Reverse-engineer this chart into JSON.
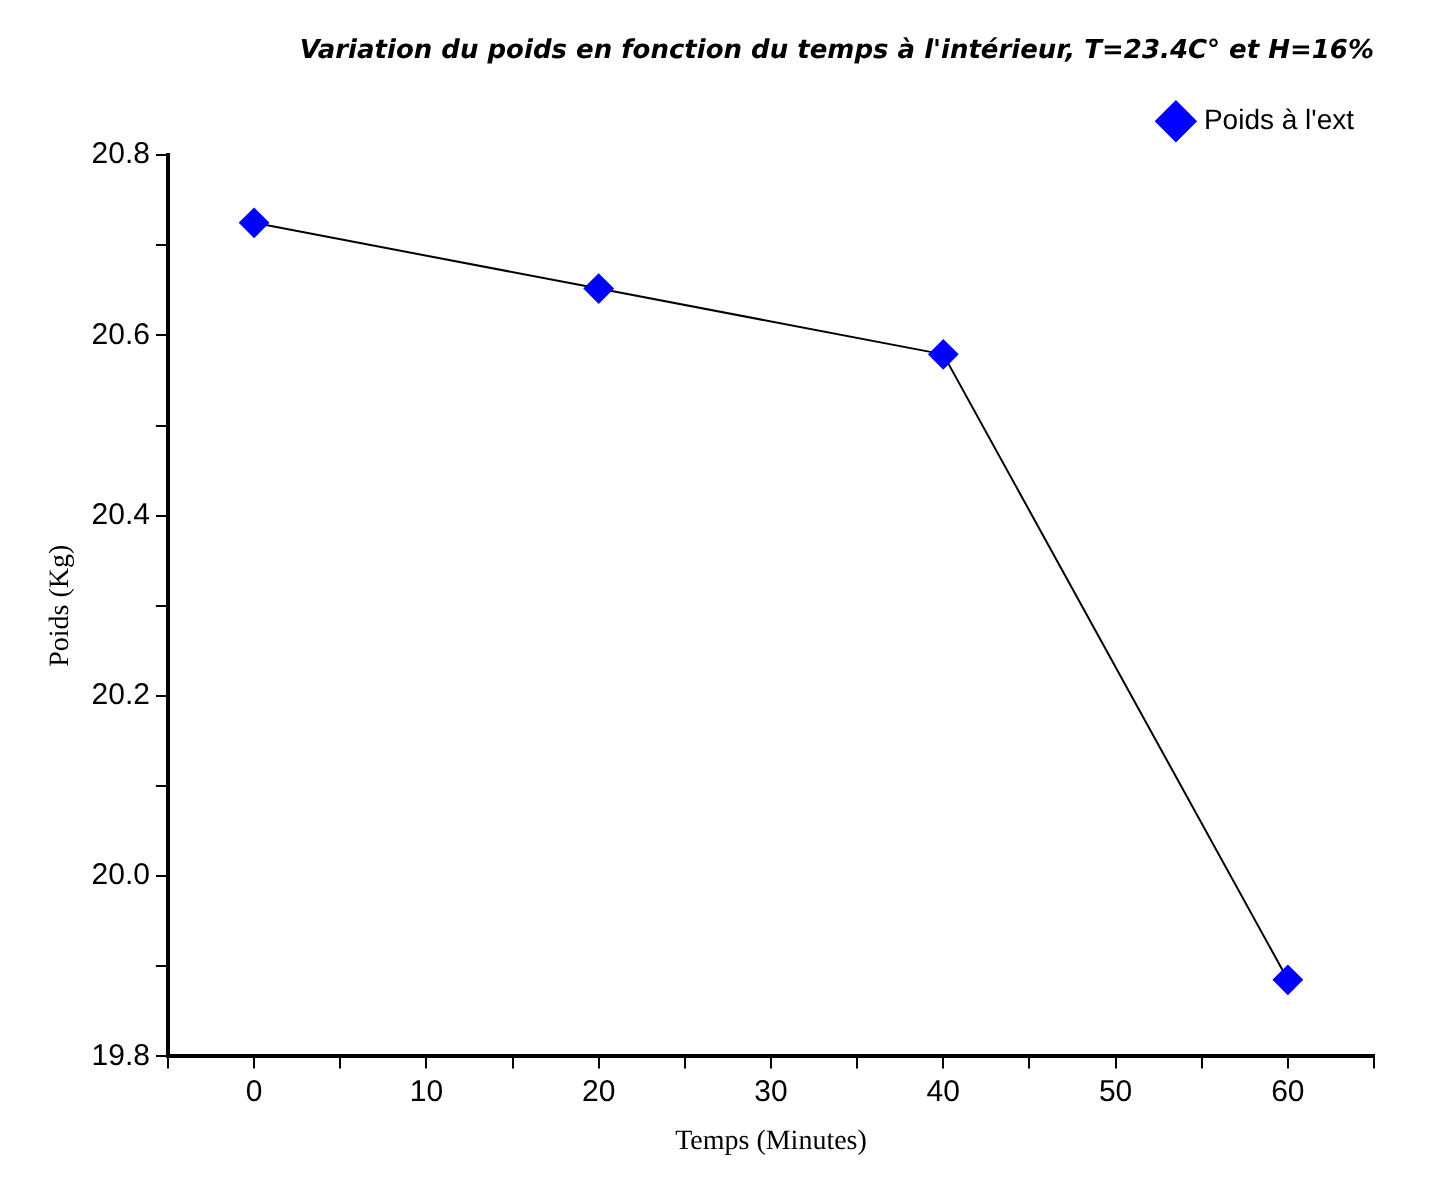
{
  "chart_data": {
    "type": "line",
    "title": "Variation du poids en fonction du temps à l'intérieur, T=23.4C° et H=16%",
    "xlabel": "Temps (Minutes)",
    "ylabel": "Poids (Kg)",
    "x": [
      0,
      20,
      40,
      60
    ],
    "series": [
      {
        "name": "Poids à l'ext",
        "color": "#0000ff",
        "values": [
          20.725,
          20.652,
          20.579,
          19.885
        ]
      }
    ],
    "xlim": [
      -5,
      65
    ],
    "xticks": [
      0,
      10,
      20,
      30,
      40,
      50,
      60
    ],
    "ylim": [
      19.8,
      20.8
    ],
    "yticks": [
      {
        "value": 19.8,
        "label": "19.8"
      },
      {
        "value": 20.0,
        "label": "20.0"
      },
      {
        "value": 20.2,
        "label": "20.2"
      },
      {
        "value": 20.4,
        "label": "20.4"
      },
      {
        "value": 20.6,
        "label": "20.6"
      },
      {
        "value": 20.8,
        "label": "20.8"
      }
    ],
    "grid": false,
    "legend": "top right",
    "marker": "diamond",
    "line_style": "solid"
  }
}
